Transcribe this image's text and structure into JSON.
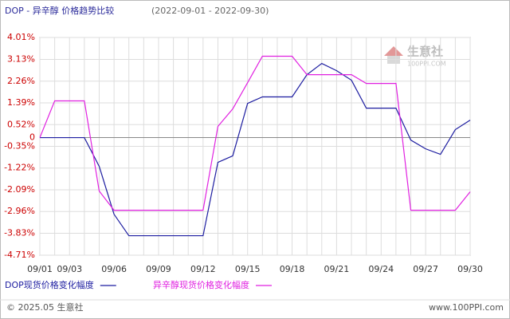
{
  "chart_data": {
    "type": "line",
    "title": "DOP - 异辛醇 价格趋势比较",
    "subtitle": "(2022-09-01 - 2022-09-30)",
    "categories": [
      "09/01",
      null,
      "09/03",
      null,
      null,
      "09/06",
      null,
      null,
      "09/09",
      null,
      null,
      "09/12",
      null,
      null,
      "09/15",
      null,
      null,
      "09/18",
      null,
      null,
      "09/21",
      null,
      null,
      "09/24",
      null,
      null,
      "09/27",
      null,
      null,
      "09/30"
    ],
    "series": [
      {
        "name": "DOP现货价格变化幅度",
        "color": "#1c1ca0",
        "values": [
          0,
          0,
          0,
          0,
          -1.15,
          -3.07,
          -3.93,
          -3.93,
          -3.93,
          -3.93,
          -3.93,
          -3.93,
          -0.99,
          -0.73,
          1.37,
          1.63,
          1.63,
          1.63,
          2.52,
          2.97,
          2.68,
          2.3,
          1.18,
          1.18,
          1.18,
          -0.1,
          -0.45,
          -0.67,
          0.32,
          0.7
        ]
      },
      {
        "name": "异辛醇现货价格变化幅度",
        "color": "#e020e0",
        "values": [
          0,
          1.47,
          1.47,
          1.47,
          -2.14,
          -2.91,
          -2.91,
          -2.91,
          -2.91,
          -2.91,
          -2.91,
          -2.91,
          0.45,
          1.15,
          2.2,
          3.26,
          3.26,
          3.26,
          2.52,
          2.52,
          2.52,
          2.52,
          2.17,
          2.17,
          2.17,
          -2.91,
          -2.91,
          -2.91,
          -2.91,
          -2.17
        ]
      }
    ],
    "ylim": [
      -4.71,
      4.01
    ],
    "yticks": [
      {
        "value": 4.01,
        "label": "4.01%"
      },
      {
        "value": 3.13,
        "label": "3.13%"
      },
      {
        "value": 2.26,
        "label": "2.26%"
      },
      {
        "value": 1.39,
        "label": "1.39%"
      },
      {
        "value": 0.52,
        "label": "0.52%"
      },
      0,
      {
        "value": -0.35,
        "label": "-0.35%"
      },
      {
        "value": -1.22,
        "label": "-1.22%"
      },
      {
        "value": -2.09,
        "label": "-2.09%"
      },
      {
        "value": -2.96,
        "label": "-2.96%"
      },
      {
        "value": -3.83,
        "label": "-3.83%"
      },
      {
        "value": -4.71,
        "label": "-4.71%"
      }
    ],
    "grid": true,
    "watermark": {
      "name": "生意社",
      "url": "100PPI.COM"
    },
    "footer": {
      "copyright": "© 2025.05 生意社",
      "site": "www.100PPI.com"
    }
  }
}
